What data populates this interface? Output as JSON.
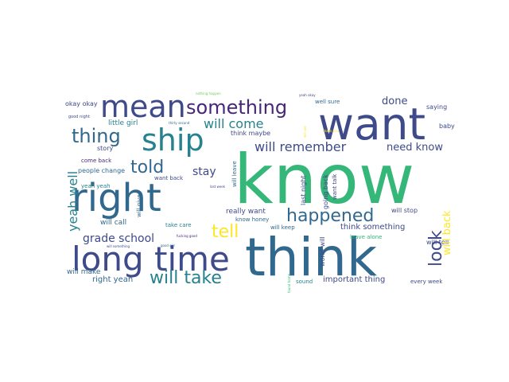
{
  "palette": {
    "purple": "#482777",
    "indigo": "#3e4a89",
    "blue": "#31688e",
    "teal": "#26828e",
    "green": "#35b779",
    "lime": "#6ece58",
    "yellow": "#fde725"
  },
  "words": {
    "know": "know",
    "think": "think",
    "want": "want",
    "right": "right",
    "long_time": "long time",
    "mean": "mean",
    "ship": "ship",
    "something": "something",
    "thing": "thing",
    "told": "told",
    "happened": "happened",
    "will_take": "will take",
    "look": "look",
    "tell": "tell",
    "will_remember": "will remember",
    "will_come": "will come",
    "need_know": "need know",
    "grade_school": "grade school",
    "yeah_well": "yeah well",
    "done": "done",
    "stay": "stay",
    "will_back": "will back",
    "really_want": "really want",
    "important_thing": "important thing",
    "right_yeah": "right yeah",
    "think_something": "think something",
    "will_stop": "will stop",
    "will_make": "will make",
    "will_call": "will call",
    "will_tell": "will tell",
    "will_keep": "will keep",
    "people_change": "people change",
    "little_girl": "little girl",
    "okay_okay": "okay okay",
    "story": "story",
    "baby": "baby",
    "saying": "saying",
    "well_sure": "well sure",
    "think_maybe": "think maybe",
    "come_back": "come back",
    "want_back": "want back",
    "yeah_yeah": "yeah yeah",
    "take_care": "take care",
    "know_honey": "know honey",
    "leave_alone": "leave alone",
    "every_week": "every week",
    "sound": "sound",
    "good_night": "good night",
    "want_talk": "want talk",
    "last_night": "last night",
    "going_back": "going back",
    "world_will": "world will",
    "will_give": "will give",
    "will_leave": "will leave",
    "last_week": "last week",
    "fucking_good": "fucking good",
    "nothing_happen": "nothing happen",
    "thirty_second": "thirty second",
    "will_something": "will something",
    "yeah_okay": "yeah okay",
    "good_girl": "good girl",
    "thank_you": "thank you",
    "found_home": "found home",
    "will_see": "will see"
  }
}
